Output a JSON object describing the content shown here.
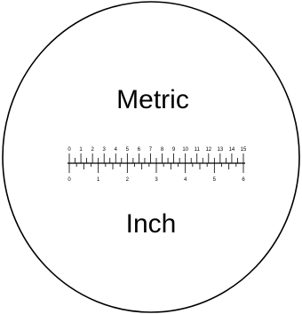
{
  "reticle": {
    "top_label": "Metric",
    "bottom_label": "Inch",
    "metric_numbers": [
      "0",
      "1",
      "2",
      "3",
      "4",
      "5",
      "6",
      "7",
      "8",
      "9",
      "10",
      "11",
      "12",
      "13",
      "14",
      "15"
    ],
    "inch_numbers": [
      "0",
      "1",
      "2",
      "3",
      "4",
      "5",
      "6"
    ],
    "line_color": "#000000",
    "background_color": "#ffffff"
  }
}
